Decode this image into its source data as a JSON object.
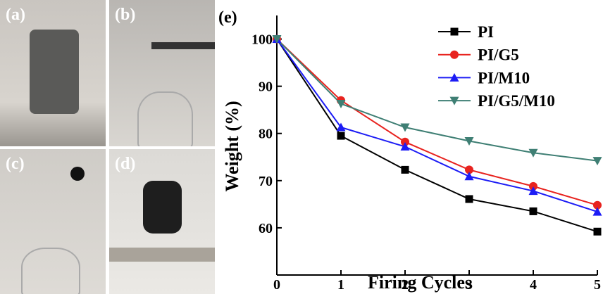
{
  "panels": [
    {
      "label": "(a)"
    },
    {
      "label": "(b)"
    },
    {
      "label": "(c)"
    },
    {
      "label": "(d)"
    }
  ],
  "chart_data": {
    "type": "line",
    "panel_label": "(e)",
    "x_label": "Firing Cycles",
    "y_label": "Weight (%)",
    "x": [
      0,
      1,
      2,
      3,
      4,
      5
    ],
    "series": [
      {
        "name": "PI",
        "color": "#000000",
        "marker": "square",
        "values": [
          100,
          79.5,
          72.3,
          66.1,
          63.5,
          59.2
        ]
      },
      {
        "name": "PI/G5",
        "color": "#e8231f",
        "marker": "circle",
        "values": [
          100,
          87,
          78.2,
          72.3,
          68.8,
          64.8
        ]
      },
      {
        "name": "PI/M10",
        "color": "#1c1cf5",
        "marker": "triangle-up",
        "values": [
          100,
          81.3,
          77.2,
          70.9,
          67.8,
          63.4
        ]
      },
      {
        "name": "PI/G5/M10",
        "color": "#3f7f74",
        "marker": "triangle-down",
        "values": [
          100,
          86.3,
          81.3,
          78.4,
          75.9,
          74.2
        ]
      }
    ],
    "xlim": [
      0,
      5
    ],
    "ylim": [
      50,
      105
    ],
    "xticks": [
      0,
      1,
      2,
      3,
      4,
      5
    ],
    "yticks": [
      60,
      70,
      80,
      90,
      100
    ],
    "legend": "upper right"
  }
}
